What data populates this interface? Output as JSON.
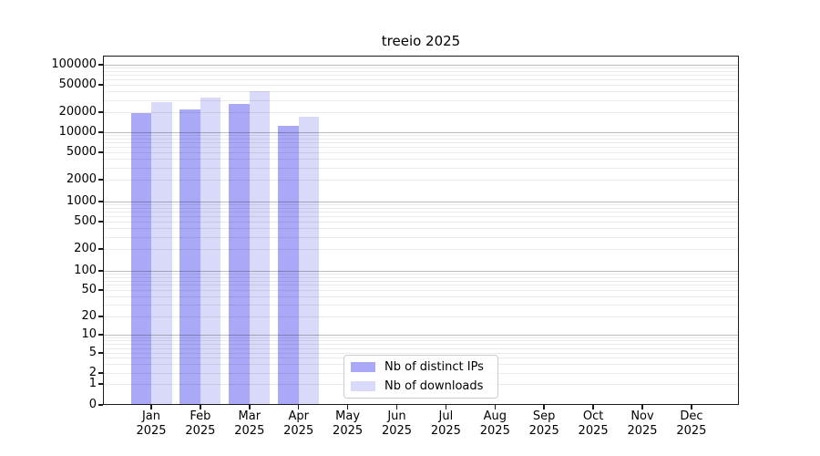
{
  "title": "treeio 2025",
  "chart_data": {
    "type": "bar",
    "title": "treeio 2025",
    "x_categories": [
      "Jan",
      "Feb",
      "Mar",
      "Apr",
      "May",
      "Jun",
      "Jul",
      "Aug",
      "Sep",
      "Oct",
      "Nov",
      "Dec"
    ],
    "x_year": "2025",
    "series": [
      {
        "name": "Nb of distinct IPs",
        "color": "#a9a9f7",
        "values": [
          19500,
          22000,
          26000,
          12300,
          null,
          null,
          null,
          null,
          null,
          null,
          null,
          null
        ]
      },
      {
        "name": "Nb of downloads",
        "color": "#d9d9f9",
        "values": [
          28000,
          33000,
          41000,
          17000,
          null,
          null,
          null,
          null,
          null,
          null,
          null,
          null
        ]
      }
    ],
    "yscale": "symlog",
    "ylim": [
      0,
      140000
    ],
    "yticks": [
      0,
      1,
      2,
      5,
      10,
      20,
      50,
      100,
      200,
      500,
      1000,
      2000,
      5000,
      10000,
      20000,
      50000,
      100000
    ],
    "grid": "both",
    "gridline_major_values": [
      10,
      100,
      1000,
      10000,
      100000
    ],
    "legend_position": "inside lower center",
    "colors": {
      "axis": "#1a1a1a",
      "legend_border": "#cccccc",
      "background": "#ffffff"
    }
  }
}
